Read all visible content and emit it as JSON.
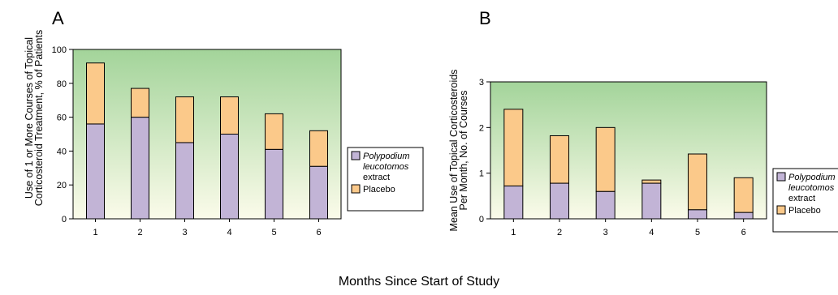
{
  "footer": {
    "xlabel": "Months Since Start of Study"
  },
  "colors": {
    "polypodium": "#c2b4d6",
    "placebo": "#fbc98a",
    "grad_top": "#a3d49a",
    "grad_bottom": "#fbfbea"
  },
  "chart_data": [
    {
      "type": "bar",
      "panel": "A",
      "stacked": true,
      "categories": [
        "1",
        "2",
        "3",
        "4",
        "5",
        "6"
      ],
      "ylabel": [
        "Use of 1 or More Courses of Topical",
        "Corticosteroid Treatment, % of Patients"
      ],
      "xlabel": "",
      "ylim": [
        0,
        100
      ],
      "yticks": [
        "0",
        "20",
        "40",
        "60",
        "80",
        "100"
      ],
      "series": [
        {
          "name_lines": [
            "Polypodium",
            "leucotomos",
            "extract"
          ],
          "values": [
            56,
            60,
            45,
            50,
            41,
            31
          ]
        },
        {
          "name_lines": [
            "Placebo"
          ],
          "values": [
            36,
            17,
            27,
            22,
            21,
            21
          ]
        }
      ],
      "legend": "right"
    },
    {
      "type": "bar",
      "panel": "B",
      "stacked": true,
      "categories": [
        "1",
        "2",
        "3",
        "4",
        "5",
        "6"
      ],
      "ylabel": [
        "Mean Use of Topical Corticosteroids",
        "Per Month, No. of Courses"
      ],
      "xlabel": "",
      "ylim": [
        0,
        3
      ],
      "yticks": [
        "0",
        "1",
        "2",
        "3"
      ],
      "series": [
        {
          "name_lines": [
            "Polypodium",
            "leucotomos",
            "extract"
          ],
          "values": [
            0.72,
            0.78,
            0.6,
            0.78,
            0.2,
            0.14
          ]
        },
        {
          "name_lines": [
            "Placebo"
          ],
          "values": [
            1.68,
            1.04,
            1.4,
            0.07,
            1.22,
            0.76
          ]
        }
      ],
      "legend": "right"
    }
  ]
}
